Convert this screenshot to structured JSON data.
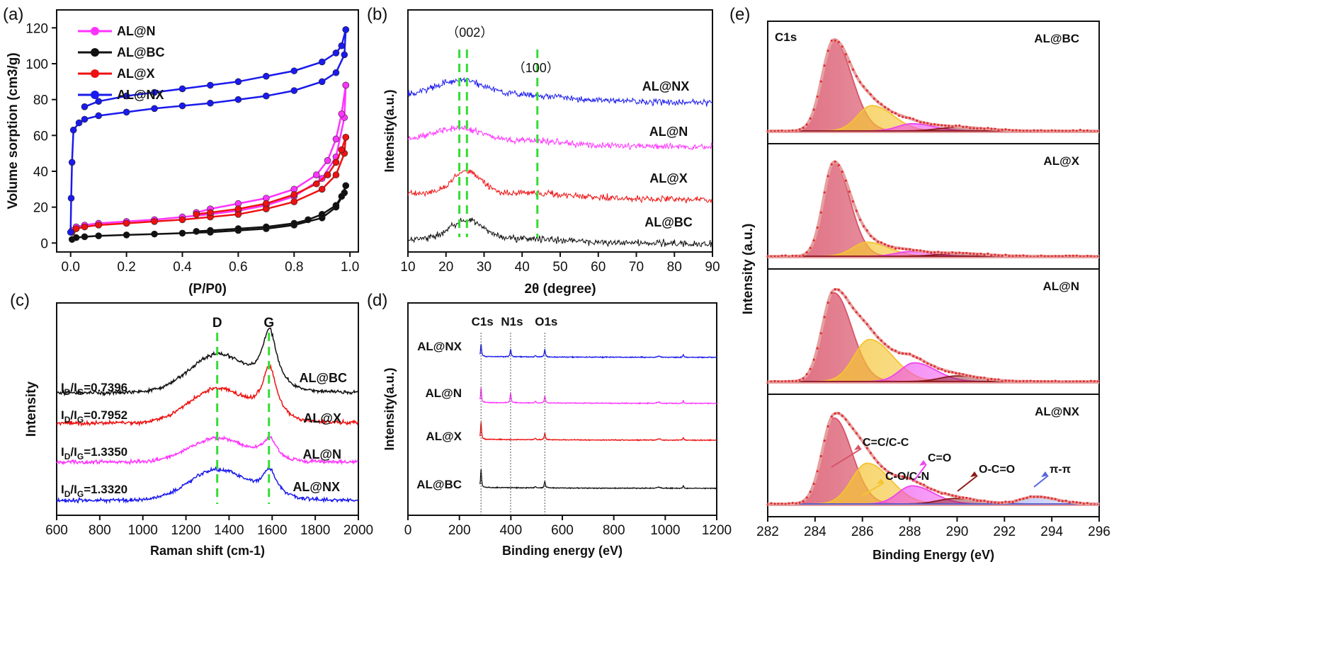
{
  "colors": {
    "magenta": "#ff33ff",
    "black": "#111111",
    "red": "#ee1111",
    "blue": "#1a1aee",
    "green_dash": "#33dd33",
    "cc_peak": "#d9546a",
    "co_peak": "#f4c431",
    "c_o_peak": "#ee44ee",
    "oco_peak": "#8b1a1a",
    "pipi_peak": "#5566dd",
    "envelope": "#e6a0a0"
  },
  "chart_data": [
    {
      "id": "a",
      "panel_label": "(a)",
      "type": "line",
      "xlabel": "(P/P0)",
      "ylabel": "Volume sorption (cm3/g)",
      "xlim": [
        -0.05,
        1.03
      ],
      "ylim": [
        -5,
        130
      ],
      "xticks": [
        "0.0",
        "0.2",
        "0.4",
        "0.6",
        "0.8",
        "1.0"
      ],
      "yticks": [
        "0",
        "20",
        "40",
        "60",
        "80",
        "100",
        "120"
      ],
      "legend_position": "top-left",
      "series": [
        {
          "name": "AL@N",
          "color": "magenta",
          "adsorption": [
            [
              0.005,
              7
            ],
            [
              0.02,
              9
            ],
            [
              0.05,
              10
            ],
            [
              0.1,
              11
            ],
            [
              0.2,
              12
            ],
            [
              0.3,
              13
            ],
            [
              0.4,
              14.5
            ],
            [
              0.5,
              16
            ],
            [
              0.6,
              18
            ],
            [
              0.7,
              21
            ],
            [
              0.8,
              26
            ],
            [
              0.9,
              36
            ],
            [
              0.95,
              48
            ],
            [
              0.98,
              70
            ],
            [
              0.985,
              88
            ]
          ],
          "desorption": [
            [
              0.985,
              88
            ],
            [
              0.97,
              72
            ],
            [
              0.95,
              58
            ],
            [
              0.92,
              46
            ],
            [
              0.88,
              38
            ],
            [
              0.8,
              30
            ],
            [
              0.7,
              25
            ],
            [
              0.6,
              22
            ],
            [
              0.5,
              19
            ],
            [
              0.45,
              17
            ]
          ]
        },
        {
          "name": "AL@BC",
          "color": "black",
          "adsorption": [
            [
              0.005,
              2
            ],
            [
              0.02,
              3
            ],
            [
              0.05,
              3.5
            ],
            [
              0.1,
              4
            ],
            [
              0.2,
              4.5
            ],
            [
              0.3,
              5
            ],
            [
              0.4,
              5.5
            ],
            [
              0.5,
              6
            ],
            [
              0.6,
              7
            ],
            [
              0.7,
              8
            ],
            [
              0.8,
              10
            ],
            [
              0.9,
              14
            ],
            [
              0.95,
              20
            ],
            [
              0.98,
              28
            ],
            [
              0.985,
              32
            ]
          ],
          "desorption": [
            [
              0.985,
              32
            ],
            [
              0.97,
              26
            ],
            [
              0.95,
              21
            ],
            [
              0.9,
              16
            ],
            [
              0.85,
              13
            ],
            [
              0.8,
              11
            ],
            [
              0.7,
              9
            ],
            [
              0.6,
              8
            ],
            [
              0.5,
              7
            ],
            [
              0.45,
              6.5
            ]
          ]
        },
        {
          "name": "AL@X",
          "color": "red",
          "adsorption": [
            [
              0.005,
              6
            ],
            [
              0.02,
              8
            ],
            [
              0.05,
              9
            ],
            [
              0.1,
              10
            ],
            [
              0.2,
              11
            ],
            [
              0.3,
              12
            ],
            [
              0.4,
              13
            ],
            [
              0.5,
              14.5
            ],
            [
              0.6,
              16
            ],
            [
              0.7,
              19
            ],
            [
              0.8,
              23
            ],
            [
              0.9,
              30
            ],
            [
              0.95,
              38
            ],
            [
              0.98,
              50
            ],
            [
              0.985,
              59
            ]
          ],
          "desorption": [
            [
              0.985,
              59
            ],
            [
              0.97,
              52
            ],
            [
              0.95,
              45
            ],
            [
              0.92,
              38
            ],
            [
              0.88,
              33
            ],
            [
              0.8,
              27
            ],
            [
              0.7,
              22
            ],
            [
              0.6,
              19
            ],
            [
              0.5,
              17
            ],
            [
              0.45,
              16
            ]
          ]
        },
        {
          "name": "AL@NX",
          "color": "blue",
          "adsorption": [
            [
              0.0,
              6
            ],
            [
              0.002,
              25
            ],
            [
              0.005,
              45
            ],
            [
              0.01,
              63
            ],
            [
              0.03,
              67
            ],
            [
              0.05,
              69
            ],
            [
              0.1,
              71
            ],
            [
              0.2,
              73
            ],
            [
              0.3,
              75
            ],
            [
              0.4,
              76.5
            ],
            [
              0.5,
              78
            ],
            [
              0.6,
              80
            ],
            [
              0.7,
              82
            ],
            [
              0.8,
              85
            ],
            [
              0.9,
              90
            ],
            [
              0.95,
              95
            ],
            [
              0.98,
              105
            ],
            [
              0.985,
              119
            ]
          ],
          "desorption": [
            [
              0.985,
              119
            ],
            [
              0.97,
              110
            ],
            [
              0.95,
              106
            ],
            [
              0.9,
              101
            ],
            [
              0.8,
              96
            ],
            [
              0.7,
              93
            ],
            [
              0.6,
              90
            ],
            [
              0.5,
              88
            ],
            [
              0.4,
              86
            ],
            [
              0.3,
              84
            ],
            [
              0.2,
              82
            ],
            [
              0.1,
              79
            ],
            [
              0.05,
              76
            ]
          ]
        }
      ]
    },
    {
      "id": "b",
      "panel_label": "(b)",
      "type": "line",
      "xlabel": "2θ (degree)",
      "ylabel": "Intensity(a.u.)",
      "xlim": [
        10,
        90
      ],
      "xticks": [
        "10",
        "20",
        "30",
        "40",
        "50",
        "60",
        "70",
        "80",
        "90"
      ],
      "annotations": [
        {
          "text": "（002）",
          "x": 25.5
        },
        {
          "text": "（100）",
          "x": 44
        }
      ],
      "dashed_lines_x": [
        23.5,
        25.5,
        44
      ],
      "series": [
        {
          "name": "AL@NX",
          "color": "blue",
          "offset": 3,
          "peaks": [
            [
              24,
              7,
              0.35
            ],
            [
              44,
              6,
              0.08
            ]
          ],
          "base_end": 0.12
        },
        {
          "name": "AL@N",
          "color": "magenta",
          "offset": 2,
          "peaks": [
            [
              23,
              7,
              0.3
            ],
            [
              43,
              7,
              0.07
            ]
          ],
          "base_end": 0.1
        },
        {
          "name": "AL@X",
          "color": "red",
          "offset": 1,
          "peaks": [
            [
              25.5,
              4,
              0.45
            ],
            [
              43,
              8,
              0.06
            ]
          ],
          "base_end": 0.15
        },
        {
          "name": "AL@BC",
          "color": "black",
          "offset": 0,
          "peaks": [
            [
              25.5,
              4.5,
              0.4
            ],
            [
              43,
              8,
              0.05
            ]
          ],
          "base_end": 0.1
        }
      ]
    },
    {
      "id": "c",
      "panel_label": "(c)",
      "type": "line",
      "xlabel": "Raman shift (cm-1)",
      "ylabel": "Intensity",
      "xlim": [
        600,
        2000
      ],
      "xticks": [
        "600",
        "800",
        "1000",
        "1200",
        "1400",
        "1600",
        "1800",
        "2000"
      ],
      "peak_labels": [
        {
          "text": "D",
          "x": 1345
        },
        {
          "text": "G",
          "x": 1585
        }
      ],
      "series": [
        {
          "name": "AL@BC",
          "color": "black",
          "ratio": "0.7396",
          "offset": 3,
          "d": 0.55,
          "g": 0.9
        },
        {
          "name": "AL@X",
          "color": "red",
          "ratio": "0.7952",
          "offset": 2,
          "d": 0.5,
          "g": 0.8
        },
        {
          "name": "AL@N",
          "color": "magenta",
          "ratio": "1.3350",
          "offset": 1,
          "d": 0.35,
          "g": 0.32
        },
        {
          "name": "AL@NX",
          "color": "blue",
          "ratio": "1.3320",
          "offset": 0,
          "d": 0.45,
          "g": 0.42
        }
      ]
    },
    {
      "id": "d",
      "panel_label": "(d)",
      "type": "line",
      "xlabel": "Binding energy (eV)",
      "ylabel": "Intensity(a.u.)",
      "xlim": [
        0,
        1200
      ],
      "xticks": [
        "0",
        "200",
        "400",
        "600",
        "800",
        "1000",
        "1200"
      ],
      "peak_labels": [
        {
          "text": "C1s",
          "x": 284
        },
        {
          "text": "N1s",
          "x": 399
        },
        {
          "text": "O1s",
          "x": 532
        }
      ],
      "series": [
        {
          "name": "AL@NX",
          "color": "blue",
          "offset": 3,
          "c": 0.6,
          "n": 0.35,
          "o": 0.35
        },
        {
          "name": "AL@N",
          "color": "magenta",
          "offset": 2,
          "c": 0.7,
          "n": 0.45,
          "o": 0.3
        },
        {
          "name": "AL@X",
          "color": "red",
          "offset": 1,
          "c": 0.8,
          "n": 0.0,
          "o": 0.3
        },
        {
          "name": "AL@BC",
          "color": "black",
          "offset": 0,
          "c": 0.85,
          "n": 0.0,
          "o": 0.3
        }
      ]
    },
    {
      "id": "e",
      "panel_label": "(e)",
      "type": "line",
      "xlabel": "Binding Energy (eV)",
      "ylabel": "Intensity (a.u.)",
      "xlim": [
        282,
        296
      ],
      "xticks": [
        "282",
        "284",
        "286",
        "288",
        "290",
        "292",
        "294",
        "296"
      ],
      "corner_label": "C1s",
      "subpanels": [
        {
          "name": "AL@BC",
          "peaks": [
            {
              "c": 284.8,
              "a": 1.0,
              "w": 0.5,
              "color": "cc_peak"
            },
            {
              "c": 286.4,
              "a": 0.28,
              "w": 0.6,
              "color": "co_peak"
            },
            {
              "c": 288.1,
              "a": 0.08,
              "w": 0.6,
              "color": "c_o_peak"
            },
            {
              "c": 290.0,
              "a": 0.04,
              "w": 0.8,
              "color": "oco_peak"
            }
          ]
        },
        {
          "name": "AL@X",
          "peaks": [
            {
              "c": 284.8,
              "a": 1.0,
              "w": 0.45,
              "color": "cc_peak"
            },
            {
              "c": 286.2,
              "a": 0.15,
              "w": 0.6,
              "color": "co_peak"
            },
            {
              "c": 288.0,
              "a": 0.05,
              "w": 0.6,
              "color": "c_o_peak"
            },
            {
              "c": 290.0,
              "a": 0.03,
              "w": 0.8,
              "color": "oco_peak"
            }
          ]
        },
        {
          "name": "AL@N",
          "peaks": [
            {
              "c": 284.8,
              "a": 0.95,
              "w": 0.5,
              "color": "cc_peak"
            },
            {
              "c": 286.3,
              "a": 0.45,
              "w": 0.65,
              "color": "co_peak"
            },
            {
              "c": 288.2,
              "a": 0.2,
              "w": 0.6,
              "color": "c_o_peak"
            },
            {
              "c": 290.0,
              "a": 0.06,
              "w": 0.7,
              "color": "oco_peak"
            }
          ]
        },
        {
          "name": "AL@NX",
          "peaks": [
            {
              "c": 284.8,
              "a": 0.95,
              "w": 0.5,
              "color": "cc_peak"
            },
            {
              "c": 286.2,
              "a": 0.45,
              "w": 0.65,
              "color": "co_peak"
            },
            {
              "c": 288.1,
              "a": 0.2,
              "w": 0.6,
              "color": "c_o_peak"
            },
            {
              "c": 289.9,
              "a": 0.06,
              "w": 0.7,
              "color": "oco_peak"
            },
            {
              "c": 293.3,
              "a": 0.08,
              "w": 0.6,
              "color": "pipi_peak"
            }
          ],
          "annotations": [
            {
              "text": "C=C/C-C",
              "color": "cc_peak"
            },
            {
              "text": "C-O/C-N",
              "color": "co_peak"
            },
            {
              "text": "C=O",
              "color": "c_o_peak"
            },
            {
              "text": "O-C=O",
              "color": "oco_peak"
            },
            {
              "text": "π-π",
              "color": "pipi_peak"
            }
          ]
        }
      ]
    }
  ]
}
